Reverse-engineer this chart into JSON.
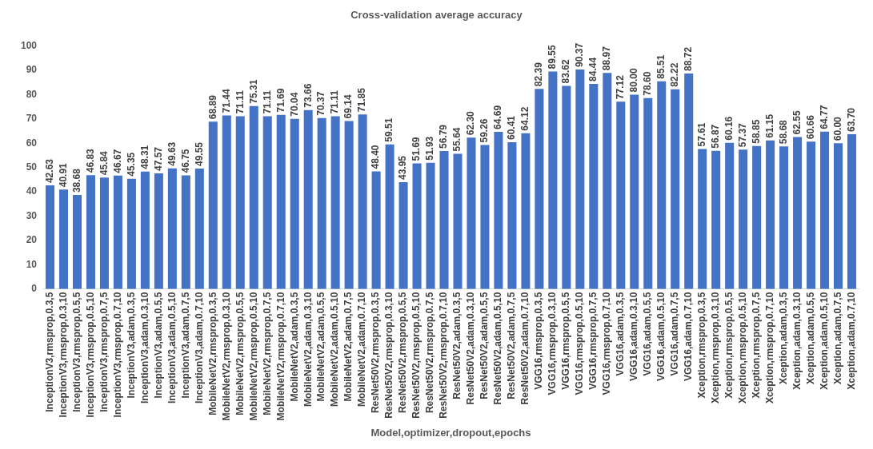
{
  "chart_data": {
    "type": "bar",
    "title": "Cross-validation average accuracy",
    "xlabel": "Model,optimizer,dropout,epochs",
    "categories": [
      "InceptionV3,rmsprop,0.3,5",
      "InceptionV3,rmsprop,0.3,10",
      "InceptionV3,rmsprop,0.5,5",
      "InceptionV3,rmsprop,0.5,10",
      "InceptionV3,rmsprop,0.7,5",
      "InceptionV3,rmsprop,0.7,10",
      "InceptionV3,adam,0.3,5",
      "InceptionV3,adam,0.3,10",
      "InceptionV3,adam,0.5,5",
      "InceptionV3,adam,0.5,10",
      "InceptionV3,adam,0.7,5",
      "InceptionV3,adam,0.7,10",
      "MobileNetV2,rmsprop,0.3,5",
      "MobileNetV2,rmsprop,0.3,10",
      "MobileNetV2,rmsprop,0.5,5",
      "MobileNetV2,rmsprop,0.5,10",
      "MobileNetV2,rmsprop,0.7,5",
      "MobileNetV2,rmsprop,0.7,10",
      "MobileNetV2,adam,0.3,5",
      "MobileNetV2,adam,0.3,10",
      "MobileNetV2,adam,0.5,5",
      "MobileNetV2,adam,0.5,10",
      "MobileNetV2,adam,0.7,5",
      "MobileNetV2,adam,0.7,10",
      "ResNet50V2,rmsprop,0.3,5",
      "ResNet50V2,rmsprop,0.3,10",
      "ResNet50V2,rmsprop,0.5,5",
      "ResNet50V2,rmsprop,0.5,10",
      "ResNet50V2,rmsprop,0.7,5",
      "ResNet50V2,rmsprop,0.7,10",
      "ResNet50V2,adam,0.3,5",
      "ResNet50V2,adam,0.3,10",
      "ResNet50V2,adam,0.5,5",
      "ResNet50V2,adam,0.5,10",
      "ResNet50V2,adam,0.7,5",
      "ResNet50V2,adam,0.7,10",
      "VGG16,rmsprop,0.3,5",
      "VGG16,rmsprop,0.3,10",
      "VGG16,rmsprop,0.5,5",
      "VGG16,rmsprop,0.5,10",
      "VGG16,rmsprop,0.7,5",
      "VGG16,rmsprop,0.7,10",
      "VGG16,adam,0.3,5",
      "VGG16,adam,0.3,10",
      "VGG16,adam,0.5,5",
      "VGG16,adam,0.5,10",
      "VGG16,adam,0.7,5",
      "VGG16,adam,0.7,10",
      "Xception,rmsprop,0.3,5",
      "Xception,rmsprop,0.3,10",
      "Xception,rmsprop,0.5,5",
      "Xception,rmsprop,0.5,10",
      "Xception,rmsprop,0.7,5",
      "Xception,rmsprop,0.7,10",
      "Xception,adam,0.3,5",
      "Xception,adam,0.3,10",
      "Xception,adam,0.5,5",
      "Xception,adam,0.5,10",
      "Xception,adam,0.7,5",
      "Xception,adam,0.7,10"
    ],
    "values": [
      42.63,
      40.91,
      38.68,
      46.83,
      45.84,
      46.67,
      45.35,
      48.31,
      47.57,
      49.63,
      46.75,
      49.55,
      68.89,
      71.44,
      71.11,
      75.31,
      71.11,
      71.69,
      70.04,
      73.66,
      70.37,
      71.11,
      69.14,
      71.85,
      48.4,
      59.51,
      43.95,
      51.69,
      51.93,
      56.79,
      55.64,
      62.3,
      59.26,
      64.69,
      60.41,
      64.12,
      82.39,
      89.55,
      83.62,
      90.37,
      84.44,
      88.97,
      77.12,
      80.0,
      78.6,
      85.51,
      82.22,
      88.72,
      57.61,
      56.87,
      60.16,
      57.37,
      58.85,
      61.15,
      58.68,
      62.55,
      60.66,
      64.77,
      60.0,
      63.7
    ],
    "value_labels": [
      "42.63",
      "40.91",
      "38.68",
      "46.83",
      "45.84",
      "46.67",
      "45.35",
      "48.31",
      "47.57",
      "49.63",
      "46.75",
      "49.55",
      "68.89",
      "71.44",
      "71.11",
      "75.31",
      "71.11",
      "71.69",
      "70.04",
      "73.66",
      "70.37",
      "71.11",
      "69.14",
      "71.85",
      "48.40",
      "59.51",
      "43.95",
      "51.69",
      "51.93",
      "56.79",
      "55.64",
      "62.30",
      "59.26",
      "64.69",
      "60.41",
      "64.12",
      "82.39",
      "89.55",
      "83.62",
      "90.37",
      "84.44",
      "88.97",
      "77.12",
      "80.00",
      "78.60",
      "85.51",
      "82.22",
      "88.72",
      "57.61",
      "56.87",
      "60.16",
      "57.37",
      "58.85",
      "61.15",
      "58.68",
      "62.55",
      "60.66",
      "64.77",
      "60.00",
      "63.70"
    ],
    "color": "#4472c4",
    "ylim": [
      0,
      100
    ],
    "yticks": [
      0,
      10,
      20,
      30,
      40,
      50,
      60,
      70,
      80,
      90,
      100
    ],
    "grid": false,
    "legend": false
  }
}
